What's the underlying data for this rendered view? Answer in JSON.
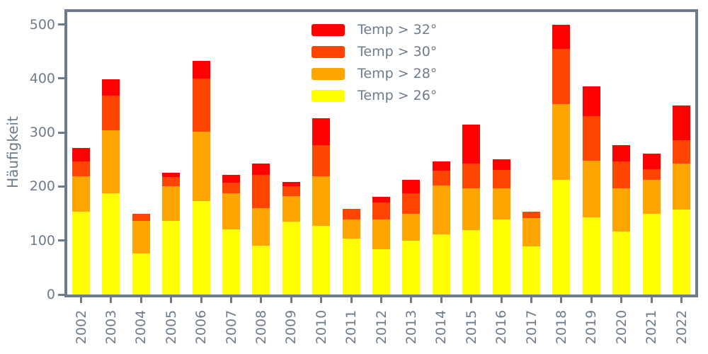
{
  "figure": {
    "background": "#ffffff",
    "axis_color": "#6e7b8b"
  },
  "y_axis": {
    "label": "Häufigkeit",
    "tick_labels": [
      "0",
      "100",
      "200",
      "300",
      "400",
      "500"
    ]
  },
  "legend": {
    "items": [
      {
        "label": "Temp > 32°",
        "color": "#ff0000"
      },
      {
        "label": "Temp > 30°",
        "color": "#ff4500"
      },
      {
        "label": "Temp > 28°",
        "color": "#ffa500"
      },
      {
        "label": "Temp > 26°",
        "color": "#ffff00"
      }
    ]
  },
  "chart_data": {
    "type": "bar",
    "stacked": true,
    "title": "",
    "xlabel": "",
    "ylabel": "Häufigkeit",
    "categories": [
      "2002",
      "2003",
      "2004",
      "2005",
      "2006",
      "2007",
      "2008",
      "2009",
      "2010",
      "2011",
      "2012",
      "2013",
      "2014",
      "2015",
      "2016",
      "2017",
      "2018",
      "2019",
      "2020",
      "2021",
      "2022"
    ],
    "series": [
      {
        "key": "temp-gt-26",
        "name": "Temp > 26°",
        "color": "#ffff00",
        "values": [
          153,
          188,
          76,
          136,
          173,
          121,
          90,
          135,
          127,
          103,
          84,
          99,
          112,
          119,
          139,
          89,
          213,
          143,
          117,
          150,
          157
        ]
      },
      {
        "key": "temp-gt-28",
        "name": "Temp > 28°",
        "color": "#ffa500",
        "values": [
          66,
          116,
          61,
          64,
          128,
          66,
          70,
          47,
          92,
          36,
          55,
          51,
          90,
          78,
          58,
          53,
          140,
          105,
          80,
          63,
          86
        ]
      },
      {
        "key": "temp-gt-30",
        "name": "Temp > 30°",
        "color": "#ff4500",
        "values": [
          28,
          65,
          13,
          17,
          99,
          20,
          61,
          18,
          58,
          20,
          31,
          38,
          27,
          45,
          34,
          12,
          102,
          83,
          50,
          19,
          43
        ]
      },
      {
        "key": "temp-gt-32",
        "name": "Temp > 32°",
        "color": "#ff0000",
        "values": [
          24,
          29,
          0,
          8,
          33,
          15,
          22,
          8,
          49,
          0,
          11,
          24,
          18,
          73,
          20,
          0,
          45,
          54,
          29,
          29,
          64
        ]
      }
    ],
    "totals": [
      271,
      398,
      150,
      225,
      433,
      222,
      243,
      208,
      326,
      159,
      181,
      212,
      247,
      315,
      251,
      154,
      500,
      385,
      276,
      261,
      350
    ],
    "ylim": [
      0,
      523
    ],
    "yticks": [
      0,
      100,
      200,
      300,
      400,
      500
    ],
    "grid": false,
    "legend_position": "upper-center-left",
    "legend_order_top_to_bottom": [
      "Temp > 32°",
      "Temp > 30°",
      "Temp > 28°",
      "Temp > 26°"
    ]
  }
}
